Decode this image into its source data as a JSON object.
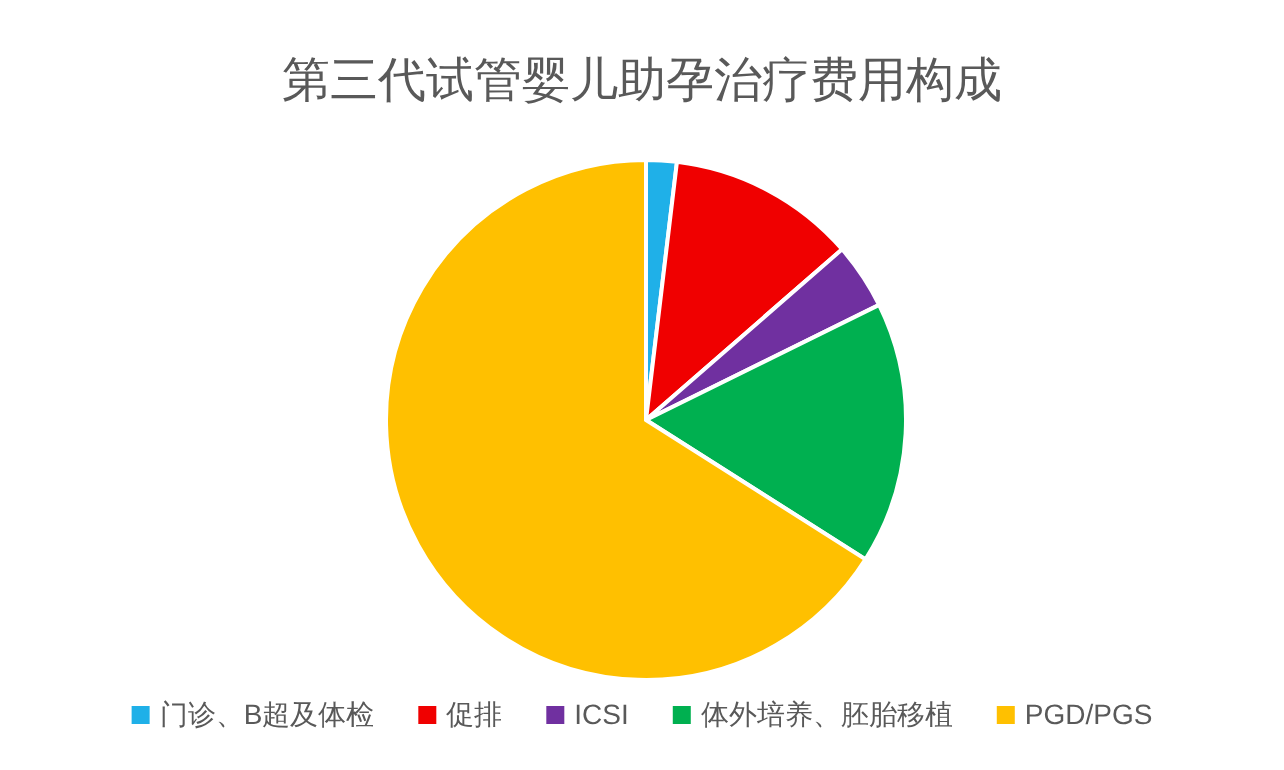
{
  "chart_data": {
    "type": "pie",
    "title": "第三代试管婴儿助孕治疗费用构成",
    "categories": [
      "门诊、B超及体检",
      "促排",
      "ICSI",
      "体外培养、胚胎移植",
      "PGD/PGS"
    ],
    "values": [
      1.9,
      11.7,
      4.1,
      16.3,
      66.0
    ],
    "colors": [
      "#1fb0e8",
      "#f00000",
      "#7030a0",
      "#00b050",
      "#ffc000"
    ],
    "legend": "bottom"
  }
}
